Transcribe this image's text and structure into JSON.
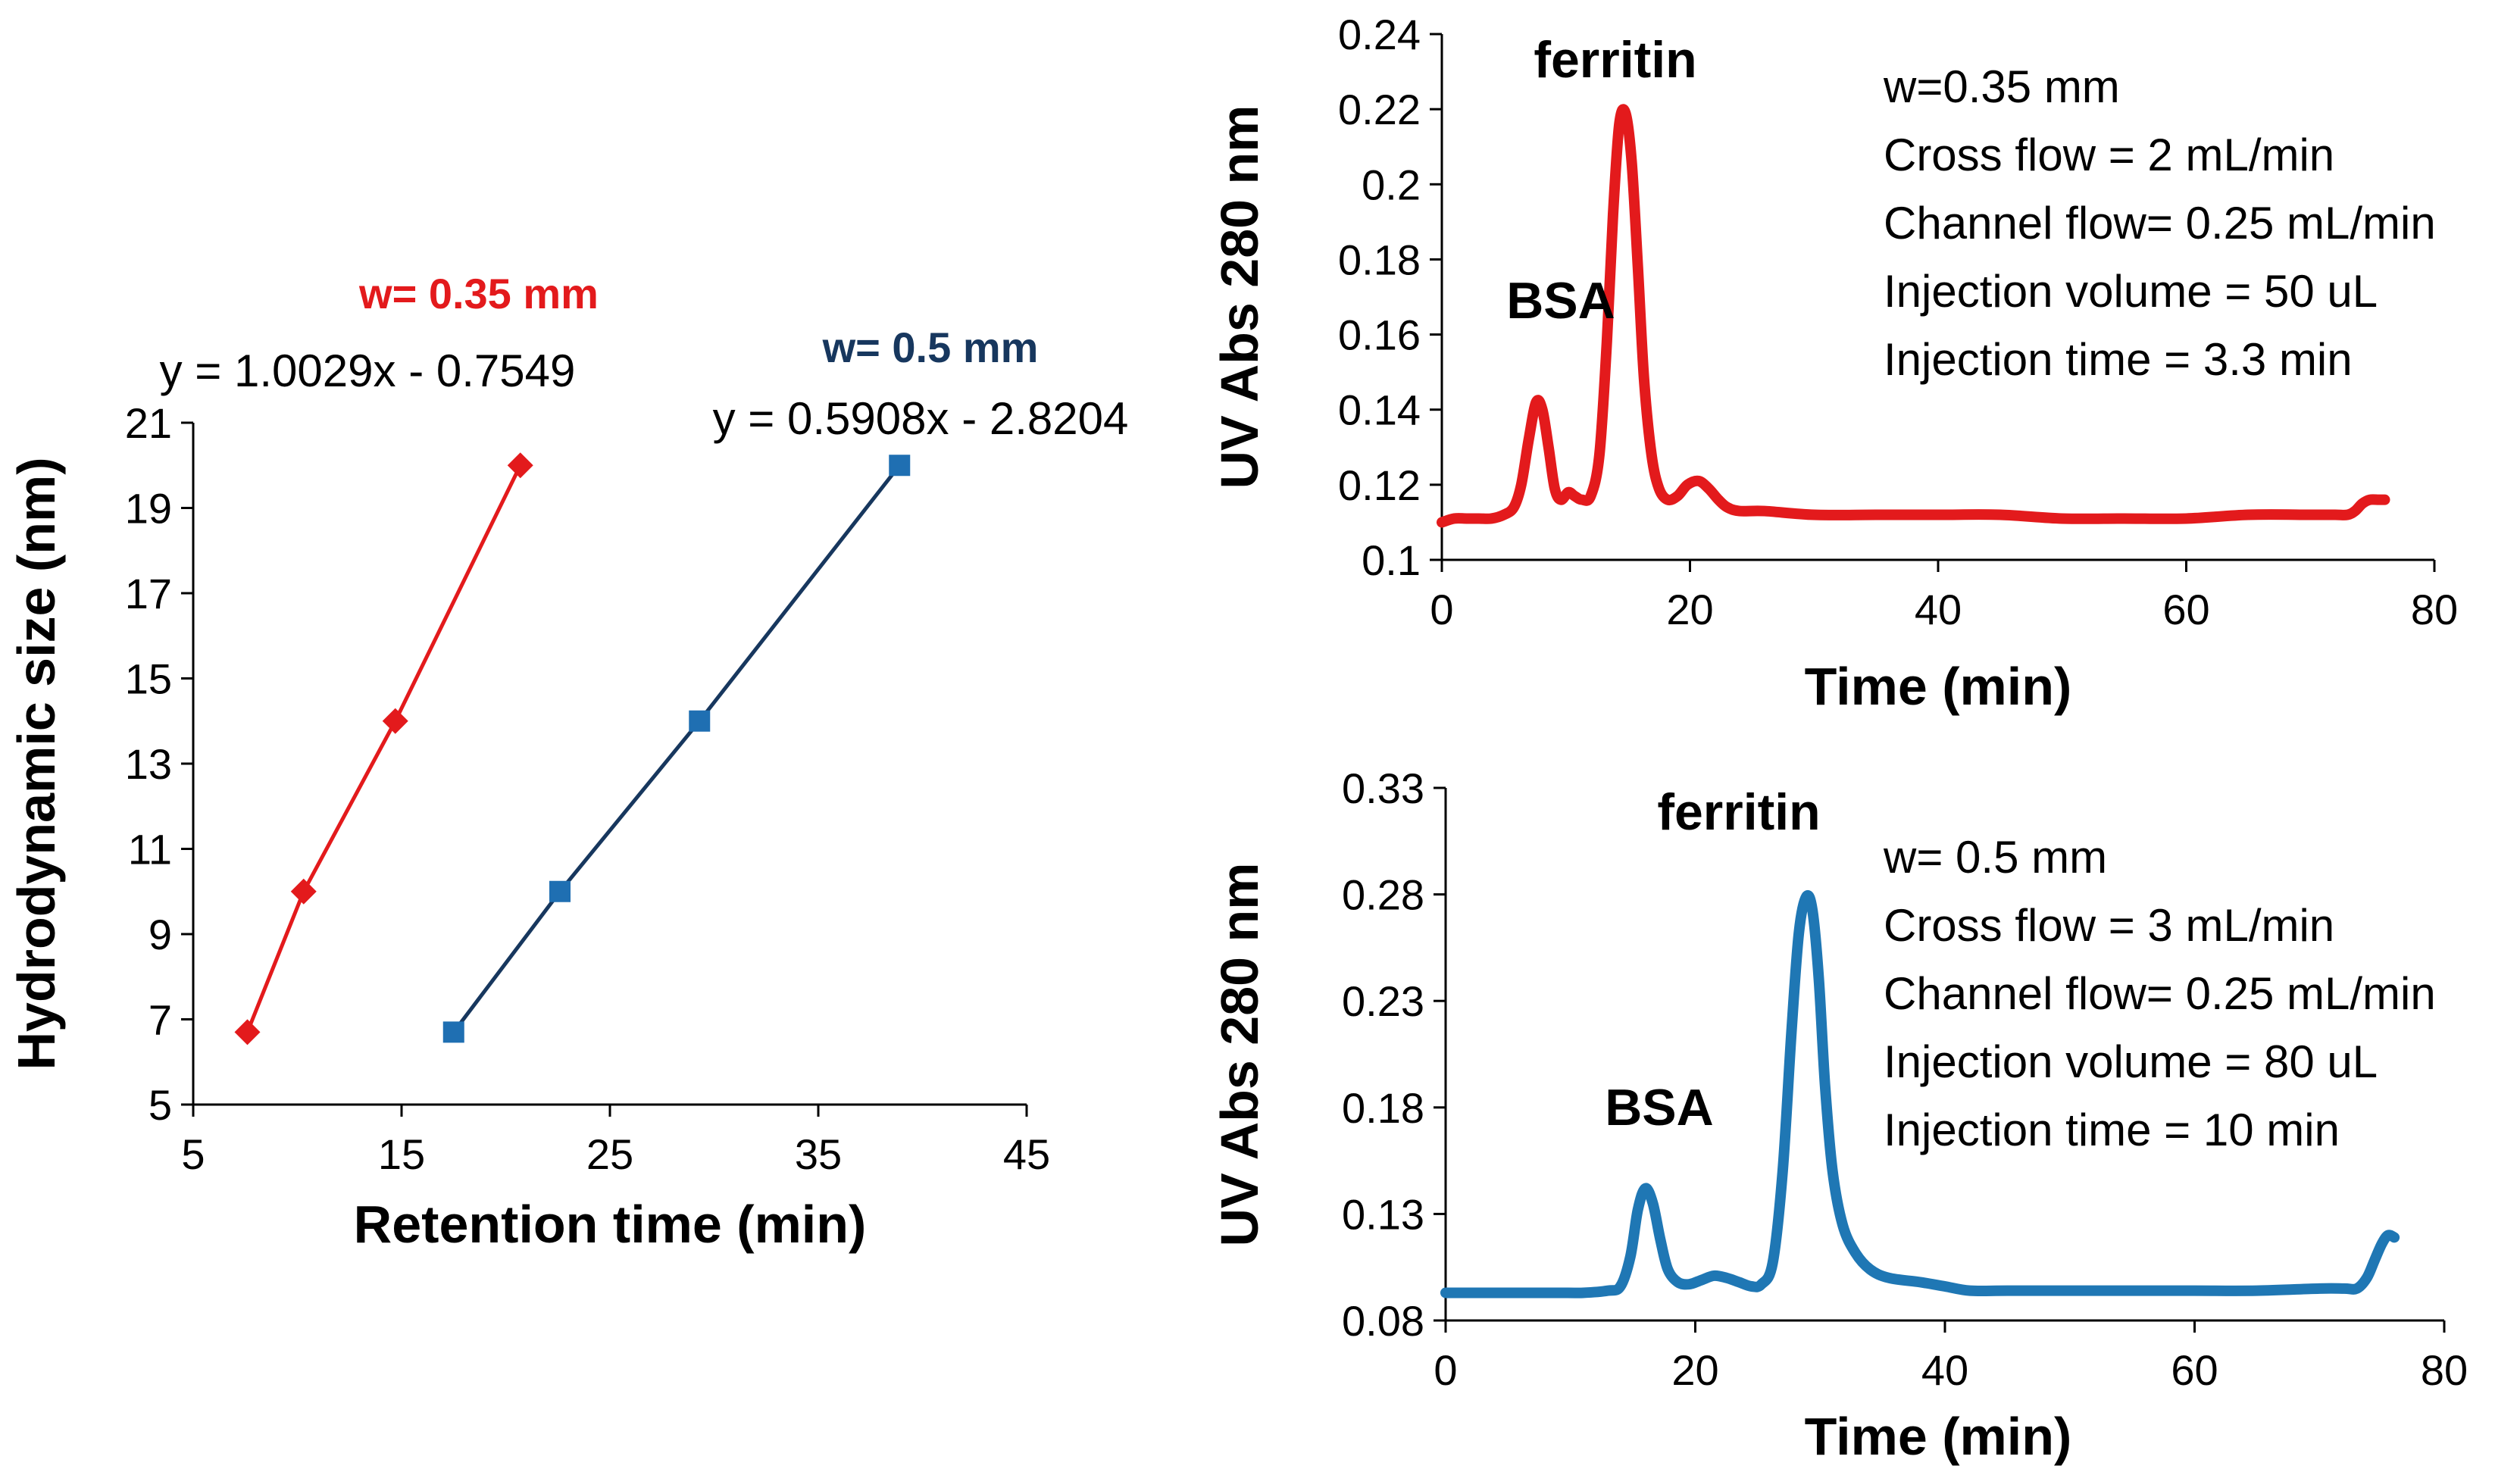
{
  "colors": {
    "red": "#e31a1c",
    "navy": "#17375e",
    "blue_marker": "#1f6fb2",
    "blue_trace": "#1f77b4"
  },
  "chart_data": [
    {
      "id": "calibration",
      "type": "scatter",
      "title": "",
      "xlabel": "Retention time (min)",
      "ylabel": "Hydrodynamic size (nm)",
      "xlim": [
        5,
        45
      ],
      "ylim": [
        5,
        21
      ],
      "xticks": [
        "5",
        "15",
        "25",
        "35",
        "45"
      ],
      "yticks": [
        "5",
        "7",
        "9",
        "11",
        "13",
        "15",
        "17",
        "19",
        "21"
      ],
      "series": [
        {
          "name": "w= 0.35 mm",
          "equation": "y = 1.0029x - 0.7549",
          "marker": "diamond",
          "x": [
            7.6,
            10.3,
            14.7,
            20.7
          ],
          "y": [
            6.7,
            10.0,
            14.0,
            20.0
          ]
        },
        {
          "name": "w= 0.5 mm",
          "equation": "y = 0.5908x - 2.8204",
          "marker": "square",
          "x": [
            17.5,
            22.6,
            29.3,
            38.9
          ],
          "y": [
            6.7,
            10.0,
            14.0,
            20.0
          ]
        }
      ]
    },
    {
      "id": "fractogram-035",
      "type": "line",
      "xlabel": "Time (min)",
      "ylabel": "UV Abs 280 nm",
      "xlim": [
        0,
        80
      ],
      "ylim": [
        0.1,
        0.24
      ],
      "xticks": [
        "0",
        "20",
        "40",
        "60",
        "80"
      ],
      "yticks": [
        "0.1",
        "0.12",
        "0.14",
        "0.16",
        "0.18",
        "0.2",
        "0.22",
        "0.24"
      ],
      "peak_labels": [
        "BSA",
        "ferritin"
      ],
      "conditions": [
        "w=0.35 mm",
        "Cross flow = 2 mL/min",
        "Channel flow= 0.25 mL/min",
        "Injection volume = 50 uL",
        "Injection time = 3.3 min"
      ],
      "x": [
        0,
        1,
        2,
        3,
        4,
        5,
        5.8,
        6.4,
        7.0,
        7.6,
        8.1,
        8.6,
        9.1,
        9.6,
        10.2,
        10.7,
        11.3,
        12.0,
        12.7,
        13.3,
        13.8,
        14.3,
        14.8,
        15.3,
        15.8,
        16.3,
        16.9,
        17.5,
        18.2,
        19.0,
        19.8,
        20.7,
        21.5,
        22.3,
        23.0,
        24,
        26,
        30,
        35,
        40,
        45,
        50,
        55,
        60,
        65,
        70,
        72,
        73,
        73.6,
        74.2,
        74.8,
        75.5,
        76
      ],
      "y": [
        0.11,
        0.111,
        0.111,
        0.111,
        0.111,
        0.112,
        0.114,
        0.12,
        0.132,
        0.142,
        0.14,
        0.13,
        0.119,
        0.116,
        0.118,
        0.117,
        0.116,
        0.117,
        0.128,
        0.158,
        0.192,
        0.216,
        0.219,
        0.206,
        0.178,
        0.148,
        0.128,
        0.119,
        0.116,
        0.117,
        0.12,
        0.121,
        0.119,
        0.116,
        0.114,
        0.113,
        0.113,
        0.112,
        0.112,
        0.112,
        0.112,
        0.111,
        0.111,
        0.111,
        0.112,
        0.112,
        0.112,
        0.112,
        0.113,
        0.115,
        0.116,
        0.116,
        0.116
      ]
    },
    {
      "id": "fractogram-05",
      "type": "line",
      "xlabel": "Time (min)",
      "ylabel": "UV Abs 280 nm",
      "xlim": [
        0,
        80
      ],
      "ylim": [
        0.08,
        0.33
      ],
      "xticks": [
        "0",
        "20",
        "40",
        "60",
        "80"
      ],
      "yticks": [
        "0.08",
        "0.13",
        "0.18",
        "0.23",
        "0.28",
        "0.33"
      ],
      "peak_labels": [
        "BSA",
        "ferritin"
      ],
      "conditions": [
        "w= 0.5 mm",
        "Cross flow = 3 mL/min",
        "Channel flow= 0.25 mL/min",
        "Injection volume = 80 uL",
        "Injection time = 10 min"
      ],
      "x": [
        0,
        3,
        6,
        9,
        11,
        13,
        14,
        14.8,
        15.4,
        16.0,
        16.6,
        17.2,
        17.8,
        18.6,
        19.5,
        20.5,
        21.5,
        22.5,
        23.5,
        24.5,
        25.3,
        26.2,
        27.0,
        27.7,
        28.3,
        28.9,
        29.4,
        29.9,
        30.4,
        31.0,
        31.8,
        32.8,
        34.0,
        35.5,
        38,
        40,
        42,
        45,
        50,
        55,
        60,
        65,
        70,
        72,
        73,
        73.8,
        74.4,
        75,
        75.5,
        76
      ],
      "y": [
        0.093,
        0.093,
        0.093,
        0.093,
        0.093,
        0.094,
        0.096,
        0.11,
        0.132,
        0.142,
        0.135,
        0.118,
        0.104,
        0.098,
        0.097,
        0.099,
        0.101,
        0.1,
        0.098,
        0.096,
        0.097,
        0.107,
        0.15,
        0.215,
        0.262,
        0.279,
        0.272,
        0.24,
        0.19,
        0.15,
        0.125,
        0.112,
        0.104,
        0.1,
        0.098,
        0.096,
        0.094,
        0.094,
        0.094,
        0.094,
        0.094,
        0.094,
        0.095,
        0.095,
        0.095,
        0.1,
        0.108,
        0.116,
        0.12,
        0.119
      ]
    }
  ]
}
